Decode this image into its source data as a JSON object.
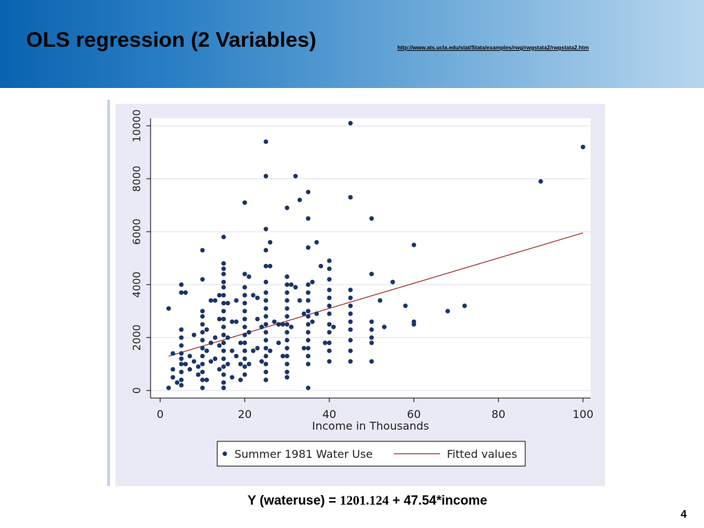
{
  "slide": {
    "title": "OLS regression (2 Variables)",
    "url": "http://www.ats.ucla.edu/stat/Stata/examples/rwg/rwgstata2/rwgstata2.htm",
    "equation_prefix": "Y (wateruse) = ",
    "equation_intercept": "1201.124",
    "equation_suffix": "  + 47.54*income",
    "page_number": "4"
  },
  "colors": {
    "title_gradient_start": "#0a63b0",
    "title_gradient_end": "#b7d6ee",
    "plot_background": "#eaeaf6",
    "marker": "#1a3468",
    "fit_line": "#9a2424",
    "grid": "#dcdfe8"
  },
  "chart_data": {
    "type": "scatter",
    "xlabel": "Income in Thousands",
    "ylabel": "",
    "xlim": [
      0,
      100
    ],
    "ylim": [
      0,
      10000
    ],
    "x_ticks": [
      0,
      20,
      40,
      60,
      80,
      100
    ],
    "y_ticks": [
      0,
      2000,
      4000,
      6000,
      8000,
      10000
    ],
    "grid": true,
    "legend_position": "bottom",
    "legend": [
      {
        "label": "Summer 1981 Water Use",
        "kind": "marker"
      },
      {
        "label": "Fitted values",
        "kind": "line"
      }
    ],
    "fitted_line": {
      "name": "Fitted values",
      "intercept": 1201.124,
      "slope": 47.54,
      "x_range": [
        2,
        100
      ]
    },
    "series": [
      {
        "name": "Summer 1981 Water Use",
        "points": [
          [
            2,
            3100
          ],
          [
            2,
            100
          ],
          [
            3,
            800
          ],
          [
            3,
            500
          ],
          [
            3,
            1400
          ],
          [
            4,
            300
          ],
          [
            5,
            4000
          ],
          [
            5,
            3700
          ],
          [
            5,
            2300
          ],
          [
            5,
            2000
          ],
          [
            5,
            1700
          ],
          [
            5,
            1400
          ],
          [
            5,
            1200
          ],
          [
            5,
            1000
          ],
          [
            5,
            700
          ],
          [
            5,
            400
          ],
          [
            5,
            200
          ],
          [
            6,
            3700
          ],
          [
            6,
            1000
          ],
          [
            7,
            1300
          ],
          [
            7,
            800
          ],
          [
            8,
            2100
          ],
          [
            8,
            1100
          ],
          [
            9,
            900
          ],
          [
            9,
            600
          ],
          [
            10,
            5300
          ],
          [
            10,
            4200
          ],
          [
            10,
            3000
          ],
          [
            10,
            2800
          ],
          [
            10,
            2500
          ],
          [
            10,
            2200
          ],
          [
            10,
            1900
          ],
          [
            10,
            1600
          ],
          [
            10,
            1300
          ],
          [
            10,
            1000
          ],
          [
            10,
            700
          ],
          [
            10,
            400
          ],
          [
            10,
            100
          ],
          [
            11,
            2300
          ],
          [
            11,
            1500
          ],
          [
            11,
            400
          ],
          [
            12,
            3400
          ],
          [
            12,
            1800
          ],
          [
            12,
            1100
          ],
          [
            13,
            3400
          ],
          [
            13,
            2000
          ],
          [
            13,
            1200
          ],
          [
            14,
            3600
          ],
          [
            14,
            2700
          ],
          [
            14,
            1700
          ],
          [
            14,
            800
          ],
          [
            15,
            5800
          ],
          [
            15,
            4800
          ],
          [
            15,
            4600
          ],
          [
            15,
            4400
          ],
          [
            15,
            4100
          ],
          [
            15,
            3900
          ],
          [
            15,
            3600
          ],
          [
            15,
            3300
          ],
          [
            15,
            3000
          ],
          [
            15,
            2700
          ],
          [
            15,
            2400
          ],
          [
            15,
            2100
          ],
          [
            15,
            1800
          ],
          [
            15,
            1500
          ],
          [
            15,
            1200
          ],
          [
            15,
            900
          ],
          [
            15,
            600
          ],
          [
            15,
            300
          ],
          [
            15,
            100
          ],
          [
            16,
            3300
          ],
          [
            16,
            2000
          ],
          [
            16,
            1000
          ],
          [
            17,
            2600
          ],
          [
            17,
            1500
          ],
          [
            17,
            500
          ],
          [
            18,
            3400
          ],
          [
            18,
            2600
          ],
          [
            18,
            1300
          ],
          [
            19,
            1800
          ],
          [
            19,
            1000
          ],
          [
            19,
            400
          ],
          [
            20,
            7100
          ],
          [
            20,
            4400
          ],
          [
            20,
            3900
          ],
          [
            20,
            3600
          ],
          [
            20,
            3300
          ],
          [
            20,
            3000
          ],
          [
            20,
            2700
          ],
          [
            20,
            2400
          ],
          [
            20,
            2100
          ],
          [
            20,
            1800
          ],
          [
            20,
            1500
          ],
          [
            20,
            1200
          ],
          [
            20,
            900
          ],
          [
            20,
            600
          ],
          [
            21,
            4300
          ],
          [
            21,
            2200
          ],
          [
            21,
            1000
          ],
          [
            22,
            3600
          ],
          [
            22,
            1500
          ],
          [
            23,
            3500
          ],
          [
            23,
            2700
          ],
          [
            23,
            1600
          ],
          [
            24,
            2400
          ],
          [
            24,
            1100
          ],
          [
            25,
            9400
          ],
          [
            25,
            8100
          ],
          [
            25,
            6100
          ],
          [
            25,
            5300
          ],
          [
            25,
            4700
          ],
          [
            25,
            4100
          ],
          [
            25,
            3700
          ],
          [
            25,
            3400
          ],
          [
            25,
            3100
          ],
          [
            25,
            2800
          ],
          [
            25,
            2500
          ],
          [
            25,
            2200
          ],
          [
            25,
            1900
          ],
          [
            25,
            1600
          ],
          [
            25,
            1300
          ],
          [
            25,
            1000
          ],
          [
            25,
            700
          ],
          [
            25,
            400
          ],
          [
            26,
            5600
          ],
          [
            26,
            4700
          ],
          [
            26,
            1500
          ],
          [
            27,
            2600
          ],
          [
            28,
            1800
          ],
          [
            28,
            2500
          ],
          [
            29,
            2500
          ],
          [
            29,
            1300
          ],
          [
            30,
            6900
          ],
          [
            30,
            4300
          ],
          [
            30,
            4000
          ],
          [
            30,
            3700
          ],
          [
            30,
            3400
          ],
          [
            30,
            3100
          ],
          [
            30,
            2800
          ],
          [
            30,
            2500
          ],
          [
            30,
            2200
          ],
          [
            30,
            1900
          ],
          [
            30,
            1600
          ],
          [
            30,
            1300
          ],
          [
            30,
            1000
          ],
          [
            30,
            700
          ],
          [
            30,
            500
          ],
          [
            31,
            4000
          ],
          [
            31,
            2400
          ],
          [
            32,
            8100
          ],
          [
            32,
            3900
          ],
          [
            33,
            7200
          ],
          [
            33,
            3400
          ],
          [
            34,
            2900
          ],
          [
            34,
            1600
          ],
          [
            35,
            7500
          ],
          [
            35,
            6500
          ],
          [
            35,
            5400
          ],
          [
            35,
            4000
          ],
          [
            35,
            3700
          ],
          [
            35,
            3400
          ],
          [
            35,
            3000
          ],
          [
            35,
            2800
          ],
          [
            35,
            2500
          ],
          [
            35,
            2200
          ],
          [
            35,
            1900
          ],
          [
            35,
            1600
          ],
          [
            35,
            1300
          ],
          [
            35,
            1000
          ],
          [
            35,
            100
          ],
          [
            36,
            4100
          ],
          [
            36,
            2600
          ],
          [
            37,
            5600
          ],
          [
            37,
            2900
          ],
          [
            38,
            4700
          ],
          [
            39,
            1800
          ],
          [
            40,
            4900
          ],
          [
            40,
            4600
          ],
          [
            40,
            4200
          ],
          [
            40,
            3800
          ],
          [
            40,
            3500
          ],
          [
            40,
            3200
          ],
          [
            40,
            2900
          ],
          [
            40,
            2500
          ],
          [
            40,
            2200
          ],
          [
            40,
            1800
          ],
          [
            40,
            1500
          ],
          [
            40,
            1100
          ],
          [
            41,
            2400
          ],
          [
            45,
            10100
          ],
          [
            45,
            7300
          ],
          [
            45,
            3800
          ],
          [
            45,
            3500
          ],
          [
            45,
            3200
          ],
          [
            45,
            2900
          ],
          [
            45,
            2600
          ],
          [
            45,
            2300
          ],
          [
            45,
            1900
          ],
          [
            45,
            1500
          ],
          [
            45,
            1100
          ],
          [
            50,
            6500
          ],
          [
            50,
            4400
          ],
          [
            50,
            2600
          ],
          [
            50,
            2300
          ],
          [
            50,
            2000
          ],
          [
            50,
            1800
          ],
          [
            50,
            1100
          ],
          [
            52,
            3400
          ],
          [
            53,
            2400
          ],
          [
            55,
            4100
          ],
          [
            58,
            3200
          ],
          [
            60,
            5500
          ],
          [
            60,
            2600
          ],
          [
            60,
            2500
          ],
          [
            68,
            3000
          ],
          [
            72,
            3200
          ],
          [
            90,
            7900
          ],
          [
            100,
            9200
          ]
        ]
      }
    ]
  }
}
